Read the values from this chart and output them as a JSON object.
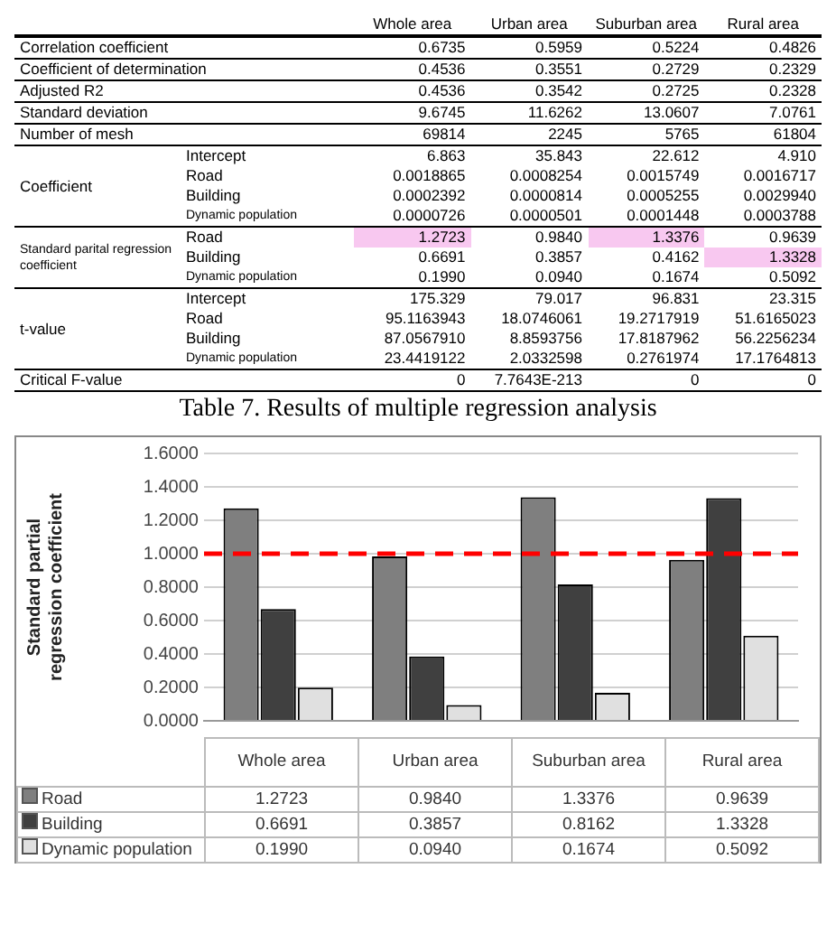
{
  "chart_data": [
    {
      "type": "other",
      "title": "Table 7.  Results of multiple regression analysis",
      "categories": [
        "Whole area",
        "Urban area",
        "Suburban area",
        "Rural area"
      ],
      "y_categories": [
        "Correlation coefficient",
        "Coefficient of determination",
        "Adjusted R2",
        "Standard deviation",
        "Number of mesh",
        "Coefficient",
        null,
        null,
        null,
        "Standard parital regression coefficient",
        null,
        null,
        "t-value",
        null,
        null,
        null,
        "Critical F-value"
      ],
      "y2_categories": [
        null,
        null,
        null,
        null,
        null,
        "Intercept",
        "Road",
        "Building",
        "Dynamic population",
        "Road",
        "Building",
        "Dynamic population",
        "Intercept",
        "Road",
        "Building",
        "Dynamic population",
        null
      ],
      "cell_labels": [
        [
          "0.6735",
          "0.5959",
          "0.5224",
          "0.4826"
        ],
        [
          "0.4536",
          "0.3551",
          "0.2729",
          "0.2329"
        ],
        [
          "0.4536",
          "0.3542",
          "0.2725",
          "0.2328"
        ],
        [
          "9.6745",
          "11.6262",
          "13.0607",
          "7.0761"
        ],
        [
          "69814",
          "2245",
          "5765",
          "61804"
        ],
        [
          "6.863",
          "35.843",
          "22.612",
          "4.910"
        ],
        [
          "0.0018865",
          "0.0008254",
          "0.0015749",
          "0.0016717"
        ],
        [
          "0.0002392",
          "0.0000814",
          "0.0005255",
          "0.0029940"
        ],
        [
          "0.0000726",
          "0.0000501",
          "0.0001448",
          "0.0003788"
        ],
        [
          "1.2723",
          "0.9840",
          "1.3376",
          "0.9639"
        ],
        [
          "0.6691",
          "0.3857",
          "0.4162",
          "1.3328"
        ],
        [
          "0.1990",
          "0.0940",
          "0.1674",
          "0.5092"
        ],
        [
          "175.329",
          "79.017",
          "96.831",
          "23.315"
        ],
        [
          "95.1163943",
          "18.0746061",
          "19.2717919",
          "51.6165023"
        ],
        [
          "87.0567910",
          "8.8593756",
          "17.8187962",
          "56.2256234"
        ],
        [
          "23.4419122",
          "2.0332598",
          "0.2761974",
          "17.1764813"
        ],
        [
          "0",
          "7.7643E-213",
          "0",
          "0"
        ]
      ],
      "colors": [
        [
          null,
          null,
          null,
          null
        ],
        [
          null,
          null,
          null,
          null
        ],
        [
          null,
          null,
          null,
          null
        ],
        [
          null,
          null,
          null,
          null
        ],
        [
          null,
          null,
          null,
          null
        ],
        [
          null,
          null,
          null,
          null
        ],
        [
          null,
          null,
          null,
          null
        ],
        [
          null,
          null,
          null,
          null
        ],
        [
          null,
          null,
          null,
          null
        ],
        [
          "#f8c8f0",
          null,
          "#f8c8f0",
          null
        ],
        [
          null,
          null,
          null,
          "#f8c8f0"
        ],
        [
          null,
          null,
          null,
          null
        ],
        [
          null,
          null,
          null,
          null
        ],
        [
          null,
          null,
          null,
          null
        ],
        [
          null,
          null,
          null,
          null
        ],
        [
          null,
          null,
          null,
          null
        ],
        [
          null,
          null,
          null,
          null
        ]
      ]
    },
    {
      "type": "bar",
      "ylabel": "Standard partial regression coefficient",
      "categories": [
        "Whole area",
        "Urban area",
        "Suburban area",
        "Rural area"
      ],
      "series": [
        {
          "name": "Road",
          "color": "#7f7f7f",
          "values": [
            1.2723,
            0.984,
            1.3376,
            0.9639
          ],
          "value_labels": [
            "1.2723",
            "0.9840",
            "1.3376",
            "0.9639"
          ]
        },
        {
          "name": "Building",
          "color": "#404040",
          "values": [
            0.6691,
            0.3857,
            0.8162,
            1.3328
          ],
          "value_labels": [
            "0.6691",
            "0.3857",
            "0.8162",
            "1.3328"
          ]
        },
        {
          "name": "Dynamic population",
          "color": "#e0e0e0",
          "values": [
            0.199,
            0.094,
            0.1674,
            0.5092
          ],
          "value_labels": [
            "0.1990",
            "0.0940",
            "0.1674",
            "0.5092"
          ]
        }
      ],
      "ylim": [
        0,
        1.6
      ],
      "yticks": [
        {
          "value": 0,
          "label": "0.0000"
        },
        {
          "value": 0.2,
          "label": "0.2000"
        },
        {
          "value": 0.4,
          "label": "0.4000"
        },
        {
          "value": 0.6,
          "label": "0.6000"
        },
        {
          "value": 0.8,
          "label": "0.8000"
        },
        {
          "value": 1,
          "label": "1.0000"
        },
        {
          "value": 1.2,
          "label": "1.2000"
        },
        {
          "value": 1.4,
          "label": "1.4000"
        },
        {
          "value": 1.6,
          "label": "1.6000"
        }
      ],
      "ref_lines": [
        {
          "axis": "y",
          "value": 1,
          "color": "#ff0000",
          "line_style": "dashed"
        }
      ],
      "grid": "y",
      "legend": "bottom",
      "tick_labels": "y"
    }
  ]
}
